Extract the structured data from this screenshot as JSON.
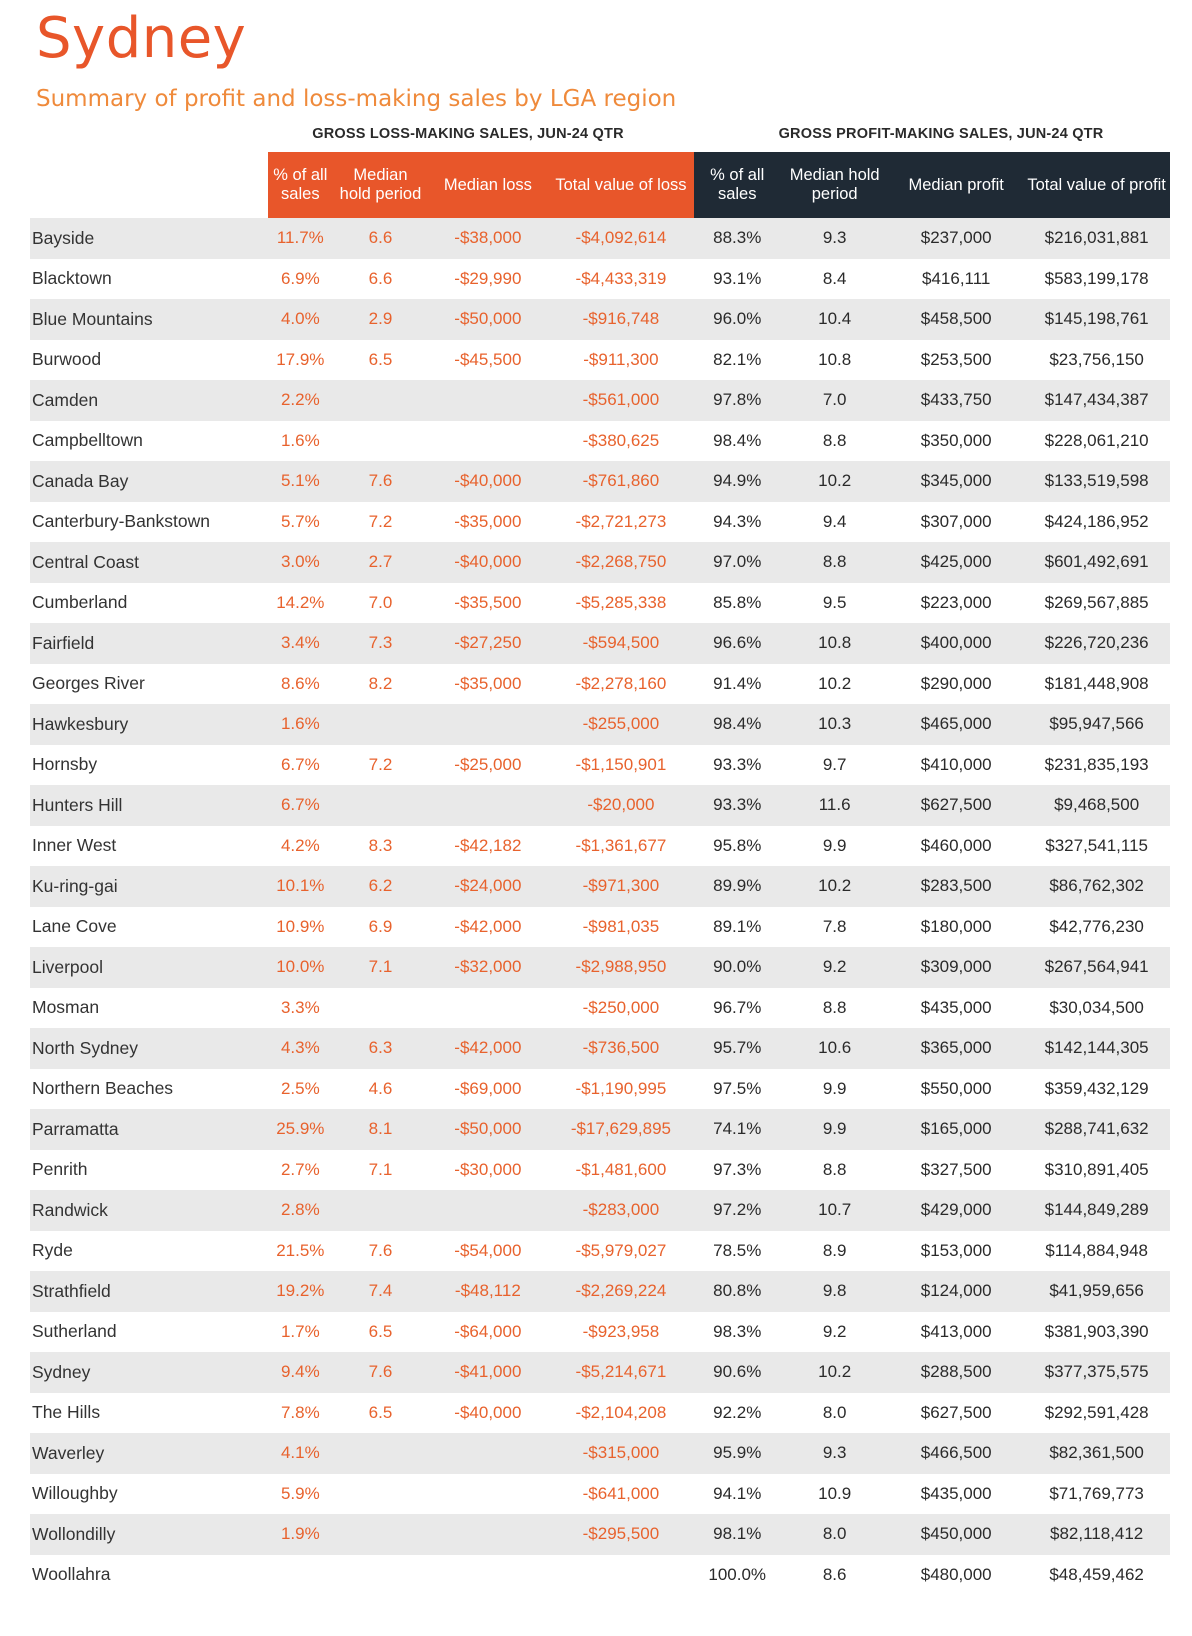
{
  "title": "Sydney",
  "subtitle": "Summary of profit and loss-making sales by LGA region",
  "group_headers": {
    "loss": "GROSS LOSS-MAKING SALES, JUN-24 QTR",
    "profit": "GROSS PROFIT-MAKING SALES, JUN-24 QTR"
  },
  "columns": {
    "loss_pct": "% of all sales",
    "loss_hold": "Median hold period",
    "loss_median": "Median loss",
    "loss_total": "Total value of loss",
    "profit_pct": "% of all sales",
    "profit_hold": "Median hold period",
    "profit_median": "Median profit",
    "profit_total": "Total value of profit"
  },
  "colors": {
    "loss_accent": "#e8562a",
    "profit_header": "#1f2a35",
    "stripe": "#e9e9e9"
  },
  "rows": [
    [
      "Bayside",
      "11.7%",
      "6.6",
      "-$38,000",
      "-$4,092,614",
      "88.3%",
      "9.3",
      "$237,000",
      "$216,031,881"
    ],
    [
      "Blacktown",
      "6.9%",
      "6.6",
      "-$29,990",
      "-$4,433,319",
      "93.1%",
      "8.4",
      "$416,111",
      "$583,199,178"
    ],
    [
      "Blue Mountains",
      "4.0%",
      "2.9",
      "-$50,000",
      "-$916,748",
      "96.0%",
      "10.4",
      "$458,500",
      "$145,198,761"
    ],
    [
      "Burwood",
      "17.9%",
      "6.5",
      "-$45,500",
      "-$911,300",
      "82.1%",
      "10.8",
      "$253,500",
      "$23,756,150"
    ],
    [
      "Camden",
      "2.2%",
      "",
      "",
      "-$561,000",
      "97.8%",
      "7.0",
      "$433,750",
      "$147,434,387"
    ],
    [
      "Campbelltown",
      "1.6%",
      "",
      "",
      "-$380,625",
      "98.4%",
      "8.8",
      "$350,000",
      "$228,061,210"
    ],
    [
      "Canada Bay",
      "5.1%",
      "7.6",
      "-$40,000",
      "-$761,860",
      "94.9%",
      "10.2",
      "$345,000",
      "$133,519,598"
    ],
    [
      "Canterbury-Bankstown",
      "5.7%",
      "7.2",
      "-$35,000",
      "-$2,721,273",
      "94.3%",
      "9.4",
      "$307,000",
      "$424,186,952"
    ],
    [
      "Central Coast",
      "3.0%",
      "2.7",
      "-$40,000",
      "-$2,268,750",
      "97.0%",
      "8.8",
      "$425,000",
      "$601,492,691"
    ],
    [
      "Cumberland",
      "14.2%",
      "7.0",
      "-$35,500",
      "-$5,285,338",
      "85.8%",
      "9.5",
      "$223,000",
      "$269,567,885"
    ],
    [
      "Fairfield",
      "3.4%",
      "7.3",
      "-$27,250",
      "-$594,500",
      "96.6%",
      "10.8",
      "$400,000",
      "$226,720,236"
    ],
    [
      "Georges River",
      "8.6%",
      "8.2",
      "-$35,000",
      "-$2,278,160",
      "91.4%",
      "10.2",
      "$290,000",
      "$181,448,908"
    ],
    [
      "Hawkesbury",
      "1.6%",
      "",
      "",
      "-$255,000",
      "98.4%",
      "10.3",
      "$465,000",
      "$95,947,566"
    ],
    [
      "Hornsby",
      "6.7%",
      "7.2",
      "-$25,000",
      "-$1,150,901",
      "93.3%",
      "9.7",
      "$410,000",
      "$231,835,193"
    ],
    [
      "Hunters Hill",
      "6.7%",
      "",
      "",
      "-$20,000",
      "93.3%",
      "11.6",
      "$627,500",
      "$9,468,500"
    ],
    [
      "Inner West",
      "4.2%",
      "8.3",
      "-$42,182",
      "-$1,361,677",
      "95.8%",
      "9.9",
      "$460,000",
      "$327,541,115"
    ],
    [
      "Ku-ring-gai",
      "10.1%",
      "6.2",
      "-$24,000",
      "-$971,300",
      "89.9%",
      "10.2",
      "$283,500",
      "$86,762,302"
    ],
    [
      "Lane Cove",
      "10.9%",
      "6.9",
      "-$42,000",
      "-$981,035",
      "89.1%",
      "7.8",
      "$180,000",
      "$42,776,230"
    ],
    [
      "Liverpool",
      "10.0%",
      "7.1",
      "-$32,000",
      "-$2,988,950",
      "90.0%",
      "9.2",
      "$309,000",
      "$267,564,941"
    ],
    [
      "Mosman",
      "3.3%",
      "",
      "",
      "-$250,000",
      "96.7%",
      "8.8",
      "$435,000",
      "$30,034,500"
    ],
    [
      "North Sydney",
      "4.3%",
      "6.3",
      "-$42,000",
      "-$736,500",
      "95.7%",
      "10.6",
      "$365,000",
      "$142,144,305"
    ],
    [
      "Northern Beaches",
      "2.5%",
      "4.6",
      "-$69,000",
      "-$1,190,995",
      "97.5%",
      "9.9",
      "$550,000",
      "$359,432,129"
    ],
    [
      "Parramatta",
      "25.9%",
      "8.1",
      "-$50,000",
      "-$17,629,895",
      "74.1%",
      "9.9",
      "$165,000",
      "$288,741,632"
    ],
    [
      "Penrith",
      "2.7%",
      "7.1",
      "-$30,000",
      "-$1,481,600",
      "97.3%",
      "8.8",
      "$327,500",
      "$310,891,405"
    ],
    [
      "Randwick",
      "2.8%",
      "",
      "",
      "-$283,000",
      "97.2%",
      "10.7",
      "$429,000",
      "$144,849,289"
    ],
    [
      "Ryde",
      "21.5%",
      "7.6",
      "-$54,000",
      "-$5,979,027",
      "78.5%",
      "8.9",
      "$153,000",
      "$114,884,948"
    ],
    [
      "Strathfield",
      "19.2%",
      "7.4",
      "-$48,112",
      "-$2,269,224",
      "80.8%",
      "9.8",
      "$124,000",
      "$41,959,656"
    ],
    [
      "Sutherland",
      "1.7%",
      "6.5",
      "-$64,000",
      "-$923,958",
      "98.3%",
      "9.2",
      "$413,000",
      "$381,903,390"
    ],
    [
      "Sydney",
      "9.4%",
      "7.6",
      "-$41,000",
      "-$5,214,671",
      "90.6%",
      "10.2",
      "$288,500",
      "$377,375,575"
    ],
    [
      "The Hills",
      "7.8%",
      "6.5",
      "-$40,000",
      "-$2,104,208",
      "92.2%",
      "8.0",
      "$627,500",
      "$292,591,428"
    ],
    [
      "Waverley",
      "4.1%",
      "",
      "",
      "-$315,000",
      "95.9%",
      "9.3",
      "$466,500",
      "$82,361,500"
    ],
    [
      "Willoughby",
      "5.9%",
      "",
      "",
      "-$641,000",
      "94.1%",
      "10.9",
      "$435,000",
      "$71,769,773"
    ],
    [
      "Wollondilly",
      "1.9%",
      "",
      "",
      "-$295,500",
      "98.1%",
      "8.0",
      "$450,000",
      "$82,118,412"
    ],
    [
      "Woollahra",
      "",
      "",
      "",
      "",
      "100.0%",
      "8.6",
      "$480,000",
      "$48,459,462"
    ]
  ]
}
